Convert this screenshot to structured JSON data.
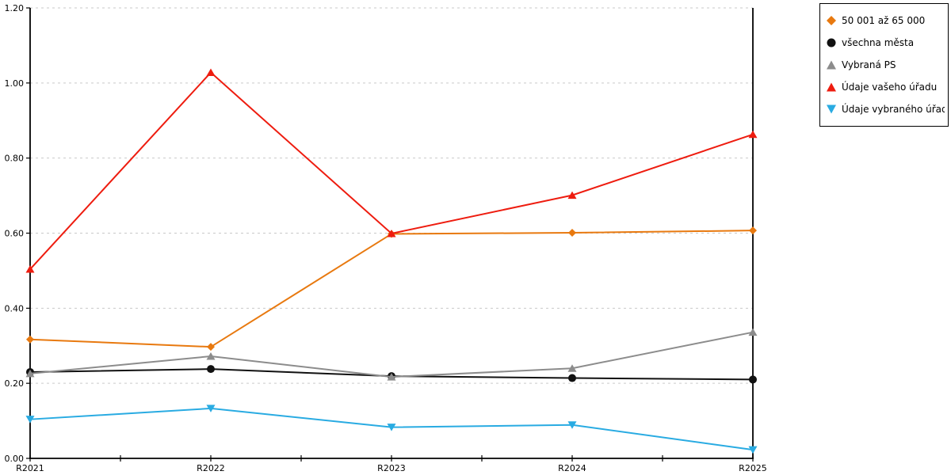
{
  "page": {
    "background": "#ffffff"
  },
  "legend": {
    "items": [
      {
        "label": "50 001 až 65 000",
        "marker": "diamond",
        "color": "#E8790F"
      },
      {
        "label": "všechna města",
        "marker": "circle",
        "color": "#111111"
      },
      {
        "label": "Vybraná PS",
        "marker": "triangle-up",
        "color": "#8C8C8C"
      },
      {
        "label": "Údaje vašeho úřadu",
        "marker": "triangle-up",
        "color": "#EE1C0F"
      },
      {
        "label": "Údaje vybraného úřadu",
        "marker": "triangle-down",
        "color": "#29ABE2"
      }
    ]
  },
  "chart_data": {
    "type": "line",
    "title": "",
    "xlabel": "",
    "ylabel": "",
    "categories": [
      "R2021",
      "R2022",
      "R2023",
      "R2024",
      "R2025"
    ],
    "series": [
      {
        "name": "50 001 až 65 000",
        "marker": "diamond",
        "color": "#E8790F",
        "values": [
          0.317,
          0.297,
          0.598,
          0.601,
          0.607
        ]
      },
      {
        "name": "všechna města",
        "marker": "circle",
        "color": "#111111",
        "values": [
          0.23,
          0.238,
          0.219,
          0.214,
          0.21
        ]
      },
      {
        "name": "Vybraná PS",
        "marker": "triangle-up",
        "color": "#8C8C8C",
        "values": [
          0.226,
          0.272,
          0.217,
          0.24,
          0.336
        ]
      },
      {
        "name": "Údaje vašeho úřadu",
        "marker": "triangle-up",
        "color": "#EE1C0F",
        "values": [
          0.504,
          1.028,
          0.599,
          0.701,
          0.863
        ]
      },
      {
        "name": "Údaje vybraného úřadu",
        "marker": "triangle-down",
        "color": "#29ABE2",
        "values": [
          0.104,
          0.133,
          0.083,
          0.089,
          0.023
        ]
      }
    ],
    "ylim": [
      0.0,
      1.2
    ],
    "ytick_step": 0.2,
    "ytick_labels": [
      "0.00",
      "0.20",
      "0.40",
      "0.60",
      "0.80",
      "1.00",
      "1.20"
    ],
    "grid": "horizontal-dashed",
    "grid_color": "#c9c9c9",
    "axis_color": "#000000",
    "legend_position": "top-right-outside"
  }
}
